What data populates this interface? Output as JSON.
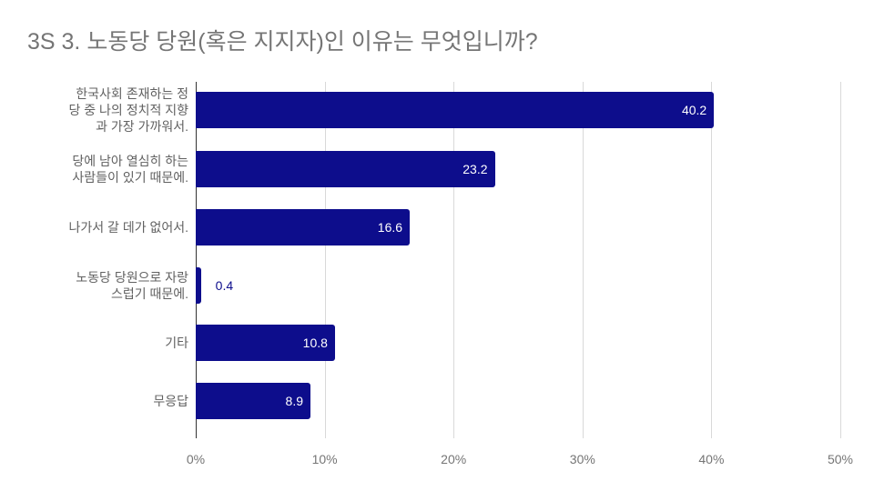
{
  "chart_data": {
    "type": "bar",
    "orientation": "horizontal",
    "title": "3S 3. 노동당 당원(혹은 지지자)인 이유는 무엇입니까?",
    "categories": [
      "한국사회 존재하는 정당 중 나의 정치적 지향과 가장 가까워서.",
      "당에 남아 열심히 하는 사람들이 있기 때문에.",
      "나가서 갈 데가 없어서.",
      "노동당 당원으로 자랑스럽기 때문에.",
      "기타",
      "무응답"
    ],
    "category_lines": [
      [
        "한국사회 존재하는 정",
        "당 중 나의 정치적 지향",
        "과 가장 가까워서."
      ],
      [
        "당에 남아 열심히 하는",
        "사람들이 있기 때문에."
      ],
      [
        "나가서 갈 데가 없어서."
      ],
      [
        "노동당 당원으로 자랑",
        "스럽기 때문에."
      ],
      [
        "기타"
      ],
      [
        "무응답"
      ]
    ],
    "values": [
      40.2,
      23.2,
      16.6,
      0.4,
      10.8,
      8.9
    ],
    "value_labels": [
      "40.2",
      "23.2",
      "16.6",
      "0.4",
      "10.8",
      "8.9"
    ],
    "xlabel": "",
    "ylabel": "",
    "xlim": [
      0,
      50
    ],
    "x_ticks": [
      "0%",
      "10%",
      "20%",
      "30%",
      "40%",
      "50%"
    ],
    "grid": true,
    "legend": "none",
    "bar_color": "#0d0d8c"
  }
}
